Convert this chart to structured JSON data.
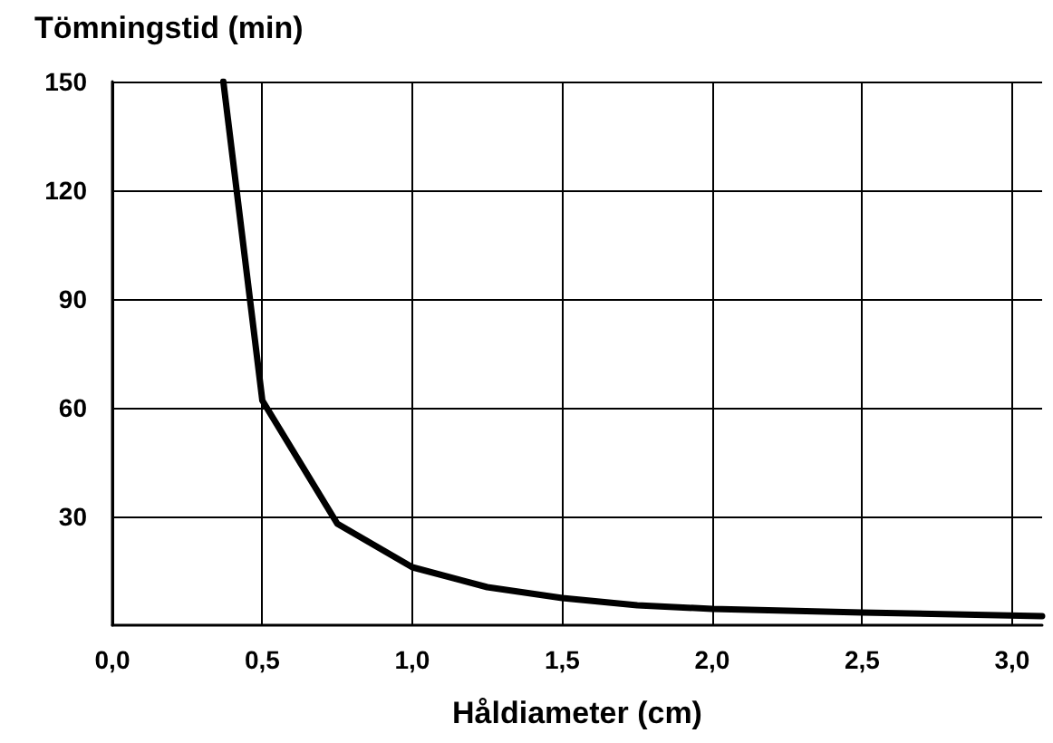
{
  "chart_data": {
    "type": "line",
    "ylabel": "Tömningstid (min)",
    "xlabel": "Håldiameter (cm)",
    "x": [
      0.37,
      0.5,
      0.75,
      1.0,
      1.25,
      1.5,
      1.75,
      2.0,
      2.5,
      3.1
    ],
    "series": [
      {
        "color": "#000000",
        "values": [
          150,
          62,
          28,
          16,
          10.5,
          7.5,
          5.5,
          4.5,
          3.5,
          2.5
        ]
      }
    ],
    "xlim": [
      0,
      3.1
    ],
    "xticks": [
      {
        "value": 0,
        "label": "0,0"
      },
      {
        "value": 0.5,
        "label": "0,5"
      },
      {
        "value": 1,
        "label": "1,0"
      },
      {
        "value": 1.5,
        "label": "1,5"
      },
      {
        "value": 2,
        "label": "2,0"
      },
      {
        "value": 2.5,
        "label": "2,5"
      },
      {
        "value": 3,
        "label": "3,0"
      }
    ],
    "ylim": [
      0,
      150
    ],
    "yticks": [
      30,
      60,
      90,
      120,
      150
    ],
    "grid": true,
    "marker": "none",
    "line_style": "solid"
  }
}
